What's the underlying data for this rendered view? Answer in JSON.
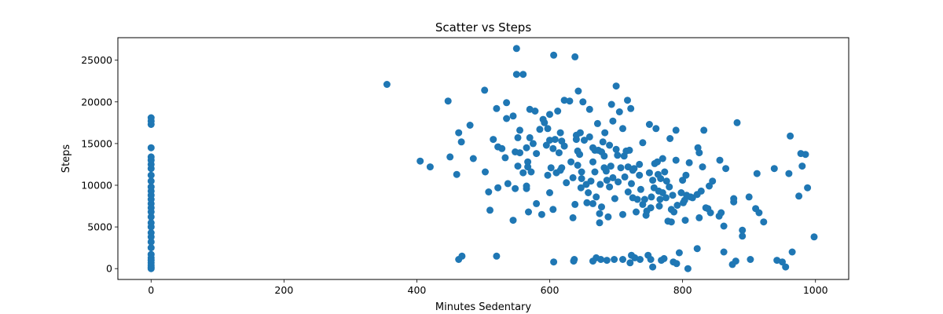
{
  "chart_data": {
    "type": "scatter",
    "title": "Scatter vs Steps",
    "xlabel": "Minutes Sedentary",
    "ylabel": "Steps",
    "xlim": [
      -50,
      1050
    ],
    "ylim": [
      -1300,
      27700
    ],
    "xticks": [
      0,
      200,
      400,
      600,
      800,
      1000
    ],
    "yticks": [
      0,
      5000,
      10000,
      15000,
      20000,
      25000
    ],
    "grid": false,
    "point_color": "#1f77b4",
    "points": [
      [
        0,
        0
      ],
      [
        0,
        150
      ],
      [
        0,
        400
      ],
      [
        0,
        700
      ],
      [
        0,
        1000
      ],
      [
        0,
        1300
      ],
      [
        0,
        1700
      ],
      [
        0,
        2500
      ],
      [
        0,
        3200
      ],
      [
        0,
        3800
      ],
      [
        0,
        4300
      ],
      [
        0,
        5000
      ],
      [
        0,
        5500
      ],
      [
        0,
        6200
      ],
      [
        0,
        6800
      ],
      [
        0,
        7300
      ],
      [
        0,
        7800
      ],
      [
        0,
        8300
      ],
      [
        0,
        8800
      ],
      [
        0,
        9300
      ],
      [
        0,
        9800
      ],
      [
        0,
        10500
      ],
      [
        0,
        11200
      ],
      [
        0,
        12000
      ],
      [
        0,
        12500
      ],
      [
        0,
        13000
      ],
      [
        0,
        13400
      ],
      [
        0,
        14500
      ],
      [
        0,
        17300
      ],
      [
        0,
        17700
      ],
      [
        0,
        18100
      ],
      [
        355,
        22100
      ],
      [
        405,
        12900
      ],
      [
        420,
        12200
      ],
      [
        447,
        20100
      ],
      [
        450,
        13400
      ],
      [
        460,
        11300
      ],
      [
        463,
        16300
      ],
      [
        467,
        15200
      ],
      [
        463,
        1100
      ],
      [
        468,
        1500
      ],
      [
        480,
        17200
      ],
      [
        485,
        13200
      ],
      [
        502,
        21400
      ],
      [
        503,
        11600
      ],
      [
        508,
        9200
      ],
      [
        510,
        7000
      ],
      [
        515,
        15500
      ],
      [
        520,
        1500
      ],
      [
        522,
        9700
      ],
      [
        522,
        14600
      ],
      [
        520,
        19200
      ],
      [
        528,
        14400
      ],
      [
        533,
        13300
      ],
      [
        535,
        19900
      ],
      [
        535,
        18000
      ],
      [
        537,
        10200
      ],
      [
        545,
        5800
      ],
      [
        545,
        18300
      ],
      [
        548,
        9600
      ],
      [
        548,
        14000
      ],
      [
        550,
        26400
      ],
      [
        550,
        23300
      ],
      [
        552,
        12300
      ],
      [
        552,
        15700
      ],
      [
        555,
        13900
      ],
      [
        555,
        16600
      ],
      [
        560,
        23300
      ],
      [
        560,
        11500
      ],
      [
        565,
        9600
      ],
      [
        565,
        14500
      ],
      [
        565,
        9900
      ],
      [
        567,
        12200
      ],
      [
        567,
        12800
      ],
      [
        568,
        6800
      ],
      [
        570,
        15700
      ],
      [
        570,
        19100
      ],
      [
        572,
        11600
      ],
      [
        575,
        15000
      ],
      [
        578,
        18900
      ],
      [
        580,
        7800
      ],
      [
        580,
        13800
      ],
      [
        585,
        16700
      ],
      [
        588,
        6500
      ],
      [
        590,
        17900
      ],
      [
        592,
        17500
      ],
      [
        595,
        14800
      ],
      [
        597,
        16800
      ],
      [
        597,
        11200
      ],
      [
        600,
        15400
      ],
      [
        600,
        18500
      ],
      [
        600,
        9100
      ],
      [
        602,
        12100
      ],
      [
        605,
        7100
      ],
      [
        605,
        14400
      ],
      [
        606,
        25600
      ],
      [
        606,
        800
      ],
      [
        608,
        15500
      ],
      [
        610,
        11500
      ],
      [
        612,
        18900
      ],
      [
        614,
        13900
      ],
      [
        616,
        11800
      ],
      [
        616,
        16300
      ],
      [
        618,
        15300
      ],
      [
        618,
        12100
      ],
      [
        622,
        20200
      ],
      [
        622,
        14700
      ],
      [
        625,
        10300
      ],
      [
        630,
        20100
      ],
      [
        632,
        12800
      ],
      [
        635,
        10900
      ],
      [
        635,
        6100
      ],
      [
        636,
        900
      ],
      [
        637,
        1100
      ],
      [
        638,
        7700
      ],
      [
        638,
        25400
      ],
      [
        640,
        16000
      ],
      [
        640,
        15500
      ],
      [
        642,
        14100
      ],
      [
        642,
        12400
      ],
      [
        643,
        21300
      ],
      [
        645,
        13700
      ],
      [
        646,
        16300
      ],
      [
        647,
        9700
      ],
      [
        648,
        11600
      ],
      [
        648,
        10800
      ],
      [
        650,
        20000
      ],
      [
        652,
        15400
      ],
      [
        655,
        10100
      ],
      [
        656,
        7900
      ],
      [
        658,
        9100
      ],
      [
        660,
        19100
      ],
      [
        660,
        15800
      ],
      [
        662,
        10500
      ],
      [
        665,
        12800
      ],
      [
        665,
        7800
      ],
      [
        665,
        14500
      ],
      [
        665,
        900
      ],
      [
        668,
        14200
      ],
      [
        668,
        11600
      ],
      [
        670,
        8600
      ],
      [
        670,
        1300
      ],
      [
        672,
        17400
      ],
      [
        673,
        14200
      ],
      [
        675,
        6600
      ],
      [
        675,
        5500
      ],
      [
        676,
        10100
      ],
      [
        677,
        1100
      ],
      [
        678,
        14000
      ],
      [
        678,
        7400
      ],
      [
        680,
        15200
      ],
      [
        682,
        13500
      ],
      [
        682,
        12100
      ],
      [
        683,
        16300
      ],
      [
        685,
        11700
      ],
      [
        686,
        1000
      ],
      [
        686,
        10600
      ],
      [
        688,
        6200
      ],
      [
        690,
        14800
      ],
      [
        690,
        9800
      ],
      [
        692,
        12300
      ],
      [
        693,
        19700
      ],
      [
        695,
        17700
      ],
      [
        695,
        10900
      ],
      [
        697,
        1100
      ],
      [
        698,
        8400
      ],
      [
        700,
        14300
      ],
      [
        700,
        21900
      ],
      [
        702,
        13600
      ],
      [
        703,
        10400
      ],
      [
        705,
        18800
      ],
      [
        707,
        12100
      ],
      [
        710,
        16800
      ],
      [
        710,
        6500
      ],
      [
        710,
        1100
      ],
      [
        712,
        13500
      ],
      [
        713,
        11000
      ],
      [
        715,
        14100
      ],
      [
        717,
        20200
      ],
      [
        718,
        9200
      ],
      [
        718,
        12200
      ],
      [
        720,
        14200
      ],
      [
        721,
        700
      ],
      [
        722,
        19200
      ],
      [
        723,
        1600
      ],
      [
        723,
        10200
      ],
      [
        725,
        11800
      ],
      [
        725,
        8500
      ],
      [
        727,
        12000
      ],
      [
        728,
        1300
      ],
      [
        730,
        6800
      ],
      [
        732,
        8300
      ],
      [
        735,
        11200
      ],
      [
        735,
        12500
      ],
      [
        736,
        1100
      ],
      [
        737,
        9500
      ],
      [
        740,
        15100
      ],
      [
        740,
        7700
      ],
      [
        743,
        8300
      ],
      [
        745,
        6400
      ],
      [
        746,
        6900
      ],
      [
        748,
        1600
      ],
      [
        750,
        17300
      ],
      [
        750,
        11500
      ],
      [
        752,
        7300
      ],
      [
        752,
        1100
      ],
      [
        753,
        8600
      ],
      [
        755,
        200
      ],
      [
        755,
        10600
      ],
      [
        757,
        9700
      ],
      [
        758,
        12600
      ],
      [
        760,
        16800
      ],
      [
        762,
        12800
      ],
      [
        763,
        11300
      ],
      [
        764,
        9300
      ],
      [
        765,
        7500
      ],
      [
        766,
        8300
      ],
      [
        767,
        10800
      ],
      [
        768,
        1000
      ],
      [
        770,
        13200
      ],
      [
        770,
        9100
      ],
      [
        772,
        1200
      ],
      [
        773,
        11600
      ],
      [
        775,
        8500
      ],
      [
        776,
        10500
      ],
      [
        778,
        5700
      ],
      [
        780,
        9800
      ],
      [
        781,
        15600
      ],
      [
        783,
        7100
      ],
      [
        783,
        5600
      ],
      [
        785,
        8800
      ],
      [
        786,
        800
      ],
      [
        787,
        6800
      ],
      [
        790,
        16600
      ],
      [
        790,
        13000
      ],
      [
        791,
        600
      ],
      [
        792,
        7600
      ],
      [
        795,
        1900
      ],
      [
        798,
        9100
      ],
      [
        800,
        10600
      ],
      [
        801,
        7900
      ],
      [
        803,
        8200
      ],
      [
        804,
        5800
      ],
      [
        805,
        11200
      ],
      [
        806,
        8800
      ],
      [
        808,
        0
      ],
      [
        810,
        12700
      ],
      [
        812,
        8600
      ],
      [
        815,
        8500
      ],
      [
        822,
        2400
      ],
      [
        822,
        8900
      ],
      [
        823,
        14500
      ],
      [
        825,
        13900
      ],
      [
        825,
        6100
      ],
      [
        828,
        9300
      ],
      [
        830,
        12200
      ],
      [
        832,
        16600
      ],
      [
        835,
        7300
      ],
      [
        838,
        7200
      ],
      [
        840,
        9900
      ],
      [
        842,
        6700
      ],
      [
        845,
        10500
      ],
      [
        855,
        6300
      ],
      [
        856,
        13000
      ],
      [
        858,
        6700
      ],
      [
        862,
        5100
      ],
      [
        862,
        2000
      ],
      [
        865,
        12000
      ],
      [
        875,
        500
      ],
      [
        877,
        8400
      ],
      [
        877,
        8000
      ],
      [
        880,
        900
      ],
      [
        882,
        17500
      ],
      [
        890,
        4600
      ],
      [
        890,
        3900
      ],
      [
        900,
        8600
      ],
      [
        902,
        1100
      ],
      [
        910,
        7200
      ],
      [
        912,
        11400
      ],
      [
        915,
        6700
      ],
      [
        922,
        5600
      ],
      [
        938,
        12000
      ],
      [
        942,
        1000
      ],
      [
        950,
        800
      ],
      [
        955,
        200
      ],
      [
        960,
        11400
      ],
      [
        962,
        15900
      ],
      [
        965,
        2000
      ],
      [
        975,
        8700
      ],
      [
        978,
        13800
      ],
      [
        980,
        12300
      ],
      [
        985,
        13700
      ],
      [
        988,
        9700
      ],
      [
        998,
        3800
      ]
    ]
  }
}
